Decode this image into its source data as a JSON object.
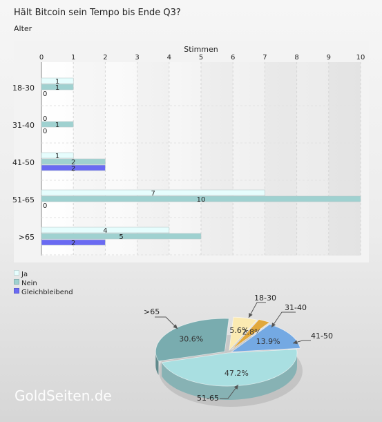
{
  "title": "Hält Bitcoin sein Tempo bis Ende Q3?",
  "subtitle": "Alter",
  "watermark": "GoldSeiten.de",
  "colors": {
    "ja": "#e6fdfd",
    "nein": "#9fd1d0",
    "gleichbleibend": "#6a6af2"
  },
  "chart_data": [
    {
      "type": "bar",
      "orientation": "horizontal",
      "xlabel": "Stimmen",
      "xlim": [
        0,
        10
      ],
      "x_ticks": [
        0,
        1,
        2,
        3,
        4,
        5,
        6,
        7,
        8,
        9,
        10
      ],
      "categories": [
        "18-30",
        "31-40",
        "41-50",
        "51-65",
        ">65"
      ],
      "series": [
        {
          "name": "Ja",
          "values": [
            1,
            0,
            1,
            7,
            4
          ]
        },
        {
          "name": "Nein",
          "values": [
            1,
            1,
            2,
            10,
            5
          ]
        },
        {
          "name": "Gleichbleibend",
          "values": [
            0,
            0,
            2,
            0,
            2
          ]
        }
      ],
      "grid": true,
      "legend": "bottom-left"
    },
    {
      "type": "pie",
      "slices": [
        {
          "label": "18-30",
          "value": 5.6,
          "display": "5.6%",
          "color": "#fbeab2"
        },
        {
          "label": "31-40",
          "value": 2.8,
          "display": "2.8%",
          "color": "#e1a83c"
        },
        {
          "label": "41-50",
          "value": 13.9,
          "display": "13.9%",
          "color": "#74a9e3"
        },
        {
          "label": "51-65",
          "value": 47.2,
          "display": "47.2%",
          "color": "#a9dfe1"
        },
        {
          "label": ">65",
          "value": 30.6,
          "display": "30.6%",
          "color": "#79acaf"
        }
      ]
    }
  ]
}
